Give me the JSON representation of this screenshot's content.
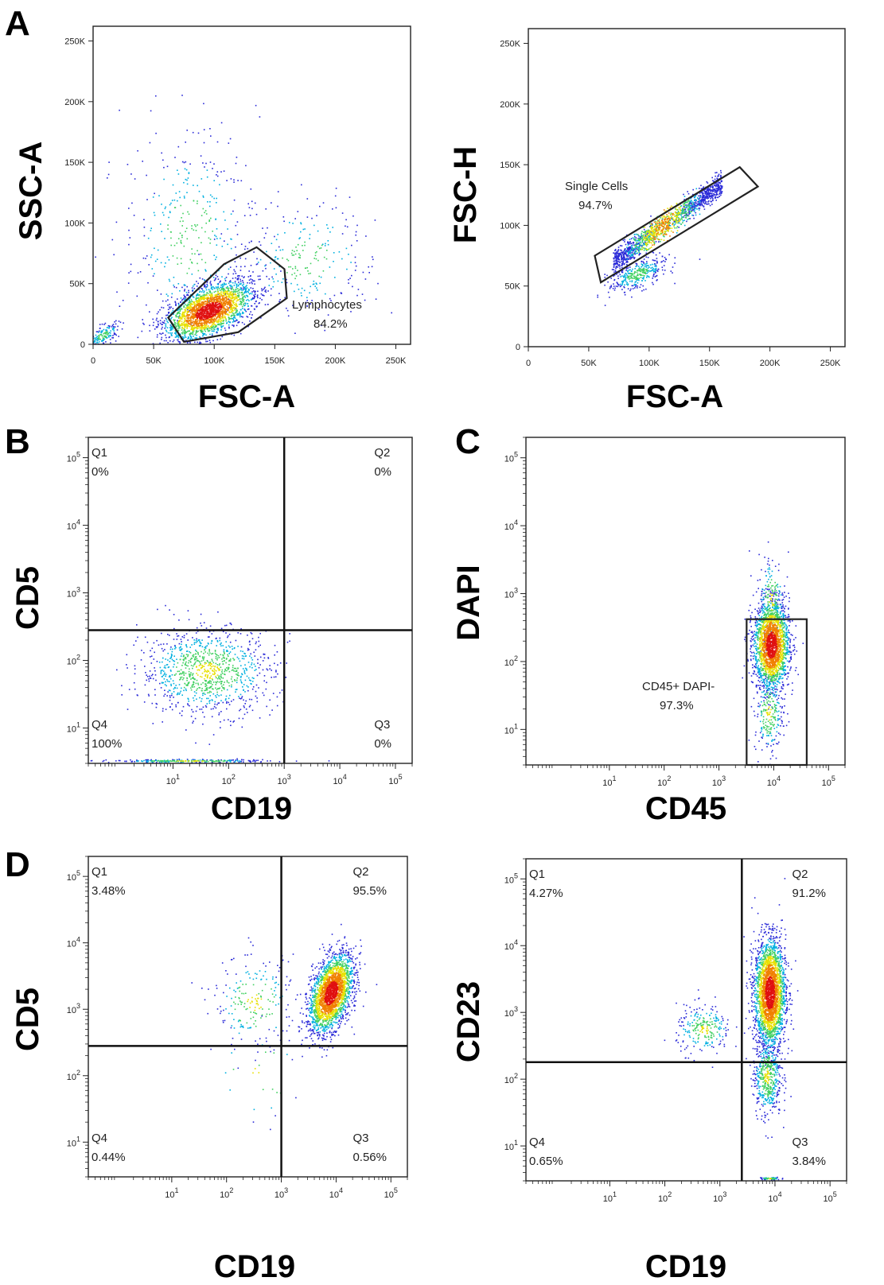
{
  "figure": {
    "letters": [
      "A",
      "B",
      "C",
      "D"
    ]
  },
  "colors": {
    "density_low": "#2a2ad8",
    "density_mid": "#00b0e0",
    "density_high": "#e8e000",
    "density_peak": "#e01010",
    "frame": "#222222"
  },
  "chart_data": [
    {
      "type": "scatter",
      "panel": "A1",
      "xlabel": "FSC-A",
      "ylabel": "SSC-A",
      "x_scale": "linear",
      "y_scale": "linear",
      "xlim": [
        0,
        262144
      ],
      "ylim": [
        0,
        262144
      ],
      "x_ticks": [
        0,
        50000,
        100000,
        150000,
        200000,
        250000
      ],
      "x_tick_labels": [
        "0",
        "50K",
        "100K",
        "150K",
        "200K",
        "250K"
      ],
      "y_ticks": [
        0,
        50000,
        100000,
        150000,
        200000,
        250000
      ],
      "y_tick_labels": [
        "0",
        "50K",
        "100K",
        "150K",
        "200K",
        "250K"
      ],
      "gate": {
        "name": "Lymphocytes",
        "percent": "84.2%",
        "polygon": [
          [
            62000,
            22000
          ],
          [
            75000,
            2000
          ],
          [
            120000,
            10000
          ],
          [
            160000,
            38000
          ],
          [
            158000,
            62000
          ],
          [
            135000,
            80000
          ],
          [
            108000,
            66000
          ]
        ]
      },
      "populations": [
        {
          "cx": 95000,
          "cy": 28000,
          "sx": 18000,
          "sy": 10000,
          "n": 2300,
          "rot": 0.35
        },
        {
          "cx": 8000,
          "cy": 8000,
          "sx": 7000,
          "sy": 4000,
          "n": 150,
          "rot": 0.5
        },
        {
          "cx": 80000,
          "cy": 90000,
          "sx": 28000,
          "sy": 45000,
          "n": 380,
          "rot": 0
        },
        {
          "cx": 175000,
          "cy": 70000,
          "sx": 30000,
          "sy": 25000,
          "n": 260,
          "rot": 0
        }
      ]
    },
    {
      "type": "scatter",
      "panel": "A2",
      "xlabel": "FSC-A",
      "ylabel": "FSC-H",
      "x_scale": "linear",
      "y_scale": "linear",
      "xlim": [
        0,
        262144
      ],
      "ylim": [
        0,
        262144
      ],
      "x_ticks": [
        0,
        50000,
        100000,
        150000,
        200000,
        250000
      ],
      "x_tick_labels": [
        "0",
        "50K",
        "100K",
        "150K",
        "200K",
        "250K"
      ],
      "y_ticks": [
        0,
        50000,
        100000,
        150000,
        200000,
        250000
      ],
      "y_tick_labels": [
        "0",
        "50K",
        "100K",
        "150K",
        "200K",
        "250K"
      ],
      "gate": {
        "name": "Single Cells",
        "percent": "94.7%",
        "polygon": [
          [
            55000,
            75000
          ],
          [
            60000,
            53000
          ],
          [
            190000,
            132000
          ],
          [
            175000,
            148000
          ]
        ]
      },
      "populations": [
        {
          "diag": true,
          "x0": 70000,
          "x1": 160000,
          "slope": 0.72,
          "y0": 70000,
          "spread": 5000,
          "n": 1500
        },
        {
          "cx": 90000,
          "cy": 60000,
          "sx": 12000,
          "sy": 6000,
          "n": 350,
          "rot": 0.35
        }
      ]
    },
    {
      "type": "scatter",
      "panel": "B",
      "xlabel": "CD19",
      "ylabel": "CD5",
      "x_scale": "log",
      "y_scale": "log",
      "xlim": [
        0.3,
        200000
      ],
      "ylim": [
        3,
        200000
      ],
      "x_ticks": [
        10,
        100,
        1000,
        10000,
        100000
      ],
      "y_ticks": [
        10,
        100,
        1000,
        10000,
        100000
      ],
      "quadrant_x": 1000,
      "quadrant_y": 280,
      "quadrants": [
        {
          "id": "Q1",
          "percent": "0%"
        },
        {
          "id": "Q2",
          "percent": "0%"
        },
        {
          "id": "Q3",
          "percent": "0%"
        },
        {
          "id": "Q4",
          "percent": "100%"
        }
      ],
      "populations": [
        {
          "lcx": 1.6,
          "lcy": 1.85,
          "lsx": 0.6,
          "lsy": 0.32,
          "n": 1000
        },
        {
          "lcx": 1.3,
          "lcy": 0.52,
          "lsx": 0.7,
          "lsy": 0.01,
          "n": 260
        }
      ]
    },
    {
      "type": "scatter",
      "panel": "C",
      "xlabel": "CD45",
      "ylabel": "DAPI",
      "x_scale": "log",
      "y_scale": "log",
      "xlim": [
        0.3,
        200000
      ],
      "ylim": [
        3,
        200000
      ],
      "x_ticks": [
        10,
        100,
        1000,
        10000,
        100000
      ],
      "y_ticks": [
        10,
        100,
        1000,
        10000,
        100000
      ],
      "gate": {
        "name": "CD45+ DAPI-",
        "percent": "97.3%",
        "rect_x": [
          3200,
          40000
        ],
        "rect_y": [
          3,
          420
        ]
      },
      "populations": [
        {
          "lcx": 3.95,
          "lcy": 2.25,
          "lsx": 0.16,
          "lsy": 0.32,
          "n": 2100
        },
        {
          "lcx": 3.95,
          "lcy": 2.9,
          "lsx": 0.12,
          "lsy": 0.35,
          "n": 200
        },
        {
          "lcx": 3.9,
          "lcy": 1.25,
          "lsx": 0.13,
          "lsy": 0.3,
          "n": 250
        }
      ]
    },
    {
      "type": "scatter",
      "panel": "D1",
      "xlabel": "CD19",
      "ylabel": "CD5",
      "x_scale": "log",
      "y_scale": "log",
      "xlim": [
        0.3,
        200000
      ],
      "ylim": [
        3,
        200000
      ],
      "x_ticks": [
        10,
        100,
        1000,
        10000,
        100000
      ],
      "y_ticks": [
        10,
        100,
        1000,
        10000,
        100000
      ],
      "quadrant_x": 1000,
      "quadrant_y": 280,
      "quadrants": [
        {
          "id": "Q1",
          "percent": "3.48%"
        },
        {
          "id": "Q2",
          "percent": "95.5%"
        },
        {
          "id": "Q3",
          "percent": "0.56%"
        },
        {
          "id": "Q4",
          "percent": "0.44%"
        }
      ],
      "populations": [
        {
          "lcx": 3.9,
          "lcy": 3.25,
          "lsx": 0.2,
          "lsy": 0.28,
          "n": 2400,
          "rot": 0.5
        },
        {
          "lcx": 2.5,
          "lcy": 3.1,
          "lsx": 0.38,
          "lsy": 0.35,
          "n": 220
        },
        {
          "lcx": 2.6,
          "lcy": 2.0,
          "lsx": 0.5,
          "lsy": 0.4,
          "n": 25
        }
      ]
    },
    {
      "type": "scatter",
      "panel": "D2",
      "xlabel": "CD19",
      "ylabel": "CD23",
      "x_scale": "log",
      "y_scale": "log",
      "xlim": [
        0.3,
        200000
      ],
      "ylim": [
        3,
        200000
      ],
      "x_ticks": [
        10,
        100,
        1000,
        10000,
        100000
      ],
      "y_ticks": [
        10,
        100,
        1000,
        10000,
        100000
      ],
      "quadrant_x": 2500,
      "quadrant_y": 180,
      "quadrants": [
        {
          "id": "Q1",
          "percent": "4.27%"
        },
        {
          "id": "Q2",
          "percent": "91.2%"
        },
        {
          "id": "Q3",
          "percent": "3.84%"
        },
        {
          "id": "Q4",
          "percent": "0.65%"
        }
      ],
      "populations": [
        {
          "lcx": 3.9,
          "lcy": 3.3,
          "lsx": 0.14,
          "lsy": 0.4,
          "n": 2600
        },
        {
          "lcx": 3.85,
          "lcy": 2.05,
          "lsx": 0.13,
          "lsy": 0.3,
          "n": 500
        },
        {
          "lcx": 2.7,
          "lcy": 2.75,
          "lsx": 0.25,
          "lsy": 0.18,
          "n": 240
        },
        {
          "lcx": 3.9,
          "lcy": 0.52,
          "lsx": 0.1,
          "lsy": 0.01,
          "n": 60
        }
      ]
    }
  ]
}
